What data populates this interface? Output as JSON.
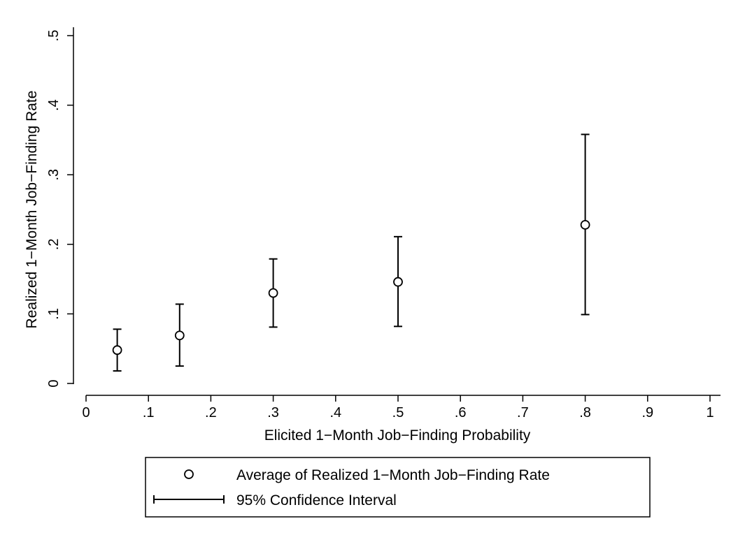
{
  "chart_data": {
    "type": "scatter",
    "xlabel": "Elicited 1−Month Job−Finding Probability",
    "ylabel": "Realized 1−Month Job−Finding Rate",
    "xlim": [
      0,
      1
    ],
    "ylim": [
      0,
      0.5
    ],
    "x_ticks": [
      "0",
      ".1",
      ".2",
      ".3",
      ".4",
      ".5",
      ".6",
      ".7",
      ".8",
      ".9",
      "1"
    ],
    "y_ticks": [
      "0",
      ".1",
      ".2",
      ".3",
      ".4",
      ".5"
    ],
    "grid": false,
    "legend_position": "bottom",
    "series": [
      {
        "name": "Average of Realized 1−Month Job−Finding Rate",
        "marker": "hollow-circle",
        "x": [
          0.05,
          0.15,
          0.3,
          0.5,
          0.8
        ],
        "y": [
          0.048,
          0.069,
          0.13,
          0.146,
          0.228
        ]
      },
      {
        "name": "95% Confidence Interval",
        "marker": "capped-range",
        "x": [
          0.05,
          0.15,
          0.3,
          0.5,
          0.8
        ],
        "low": [
          0.018,
          0.025,
          0.081,
          0.082,
          0.099
        ],
        "high": [
          0.078,
          0.114,
          0.179,
          0.211,
          0.358
        ]
      }
    ]
  }
}
